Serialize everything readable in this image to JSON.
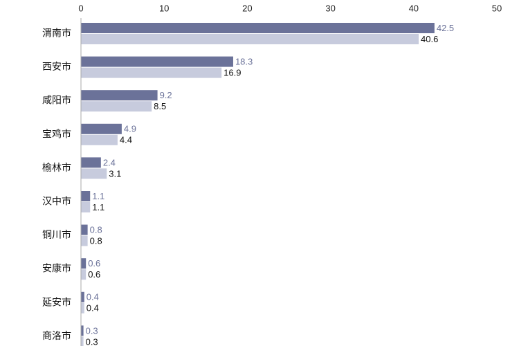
{
  "chart_data": {
    "type": "bar",
    "orientation": "horizontal",
    "title": "",
    "xlabel": "",
    "ylabel": "",
    "xlim": [
      0,
      50
    ],
    "x_ticks": [
      0,
      10,
      20,
      30,
      40,
      50
    ],
    "x_axis_position": "top",
    "grid": false,
    "categories": [
      "渭南市",
      "西安市",
      "咸阳市",
      "宝鸡市",
      "榆林市",
      "汉中市",
      "铜川市",
      "安康市",
      "延安市",
      "商洛市"
    ],
    "series": [
      {
        "name": "series-1",
        "color": "#6b7299",
        "label_color": "#6b7299",
        "values": [
          42.5,
          18.3,
          9.2,
          4.9,
          2.4,
          1.1,
          0.8,
          0.6,
          0.4,
          0.3
        ]
      },
      {
        "name": "series-2",
        "color": "#c7cbdd",
        "label_color": "#111111",
        "values": [
          40.6,
          16.9,
          8.5,
          4.4,
          3.1,
          1.1,
          0.8,
          0.6,
          0.4,
          0.3
        ]
      }
    ],
    "axis_color": "#aaaaaa",
    "legend": "none"
  }
}
